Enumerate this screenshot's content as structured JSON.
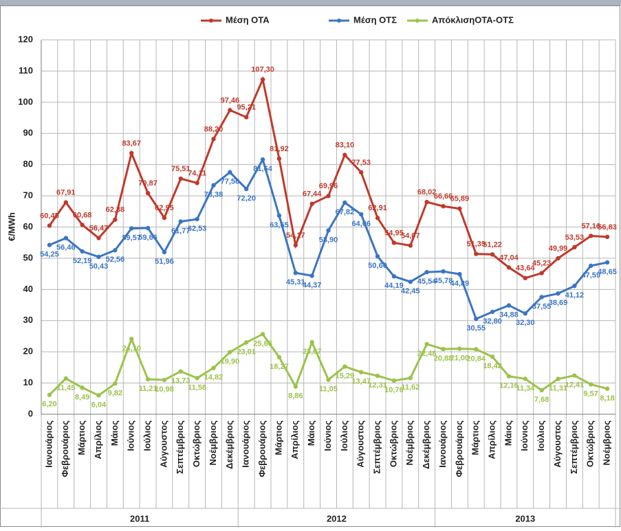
{
  "chart_data": {
    "type": "line",
    "y_label": "€/MWh",
    "categories": [
      "Ιανουάριος",
      "Φεβρουάριος",
      "Μάρτιος",
      "Απρίλιος",
      "Μάιος",
      "Ιούνιος",
      "Ιούλιος",
      "Αύγουστος",
      "Σεπτέμβριος",
      "Οκτώβριος",
      "Νοέμβριος",
      "Δεκέμβριος",
      "Ιανουάριος",
      "Φεβρουάριος",
      "Μάρτιος",
      "Απρίλιος",
      "Μάιος",
      "Ιούνιος",
      "Ιούλιος",
      "Αύγουστος",
      "Σεπτέμβριος",
      "Οκτώβριος",
      "Νοέμβριος",
      "Δεκέμβριος",
      "Ιανουάριος",
      "Φεβρουάριος",
      "Μάρτιος",
      "Απρίλιος",
      "Μάιος",
      "Ιούνιος",
      "Ιούλιος",
      "Αύγουστος",
      "Σεπτέμβριος",
      "Οκτώβριος",
      "Νοέμβριος"
    ],
    "groups": [
      {
        "label": "2011",
        "size": 12
      },
      {
        "label": "2012",
        "size": 12
      },
      {
        "label": "2013",
        "size": 11
      }
    ],
    "series": [
      {
        "name": "Μέση ΟΤΑ",
        "color": "#c0392b",
        "values": [
          60.45,
          67.91,
          60.68,
          56.47,
          62.38,
          83.67,
          70.87,
          62.95,
          75.51,
          74.11,
          88.2,
          97.46,
          95.21,
          107.3,
          81.92,
          54.17,
          67.44,
          69.96,
          83.1,
          77.53,
          62.91,
          54.95,
          54.07,
          68.02,
          66.66,
          65.89,
          51.39,
          51.22,
          47.04,
          43.64,
          45.23,
          49.99,
          53.53,
          57.16,
          56.83
        ],
        "value_labels": [
          "60,45",
          "67,91",
          "60,68",
          "56,47",
          "62,38",
          "83,67",
          "70,87",
          "62,95",
          "75,51",
          "74,11",
          "88,20",
          "97,46",
          "95,21",
          "107,30",
          "81,92",
          "54,17",
          "67,44",
          "69,96",
          "83,10",
          "77,53",
          "62,91",
          "54,95",
          "54,07",
          "68,02",
          "66,66",
          "65,89",
          "51,39",
          "51,22",
          "47,04",
          "43,64",
          "45,23",
          "49,99",
          "53,53",
          "57,16",
          "56,83"
        ]
      },
      {
        "name": "Μέση ΟΤΣ",
        "color": "#3a75c4",
        "values": [
          54.25,
          56.46,
          52.19,
          50.43,
          52.56,
          59.57,
          59.66,
          51.96,
          61.77,
          62.53,
          73.38,
          77.56,
          72.2,
          81.64,
          63.65,
          45.31,
          44.37,
          58.9,
          67.82,
          64.06,
          50.6,
          44.19,
          42.45,
          45.54,
          45.78,
          44.89,
          30.55,
          32.8,
          34.88,
          32.3,
          37.55,
          38.69,
          41.12,
          47.59,
          48.65
        ],
        "value_labels": [
          "54,25",
          "56,46",
          "52,19",
          "50,43",
          "52,56",
          "59,57",
          "59,66",
          "51,96",
          "61,77",
          "62,53",
          "73,38",
          "77,56",
          "72,20",
          "81,64",
          "63,65",
          "45,31",
          "44,37",
          "58,90",
          "67,82",
          "64,06",
          "50,60",
          "44,19",
          "42,45",
          "45,54",
          "45,78",
          "44,89",
          "30,55",
          "32,80",
          "34,88",
          "32,30",
          "37,55",
          "38,69",
          "41,12",
          "47,59",
          "48,65"
        ]
      },
      {
        "name": "ΑπόκλισηΟΤΑ-ΟΤΣ",
        "color": "#9bc34a",
        "values": [
          6.2,
          11.45,
          8.49,
          6.04,
          9.82,
          24.1,
          11.21,
          10.98,
          13.73,
          11.58,
          14.82,
          19.9,
          23.01,
          25.66,
          18.27,
          8.86,
          23.07,
          11.05,
          15.29,
          13.47,
          12.31,
          10.76,
          11.62,
          22.48,
          20.88,
          21.0,
          20.84,
          18.42,
          12.16,
          11.34,
          7.68,
          11.31,
          12.41,
          9.57,
          8.18
        ],
        "value_labels": [
          "6,20",
          "11,45",
          "8,49",
          "6,04",
          "9,82",
          "24,10",
          "11,21",
          "10,98",
          "13,73",
          "11,58",
          "14,82",
          "19,90",
          "23,01",
          "25,66",
          "18,27",
          "8,86",
          "23,07",
          "11,05",
          "15,29",
          "13,47",
          "12,31",
          "10,76",
          "11,62",
          "22,48",
          "20,88",
          "21,00",
          "20,84",
          "18,42",
          "12,16",
          "11,34",
          "7,68",
          "11,31",
          "12,41",
          "9,57",
          "8,18"
        ]
      }
    ],
    "ylim": [
      0,
      120
    ],
    "yticks": [
      0,
      10,
      20,
      30,
      40,
      50,
      60,
      70,
      80,
      90,
      100,
      110,
      120
    ],
    "grid": true,
    "legend": "top"
  }
}
